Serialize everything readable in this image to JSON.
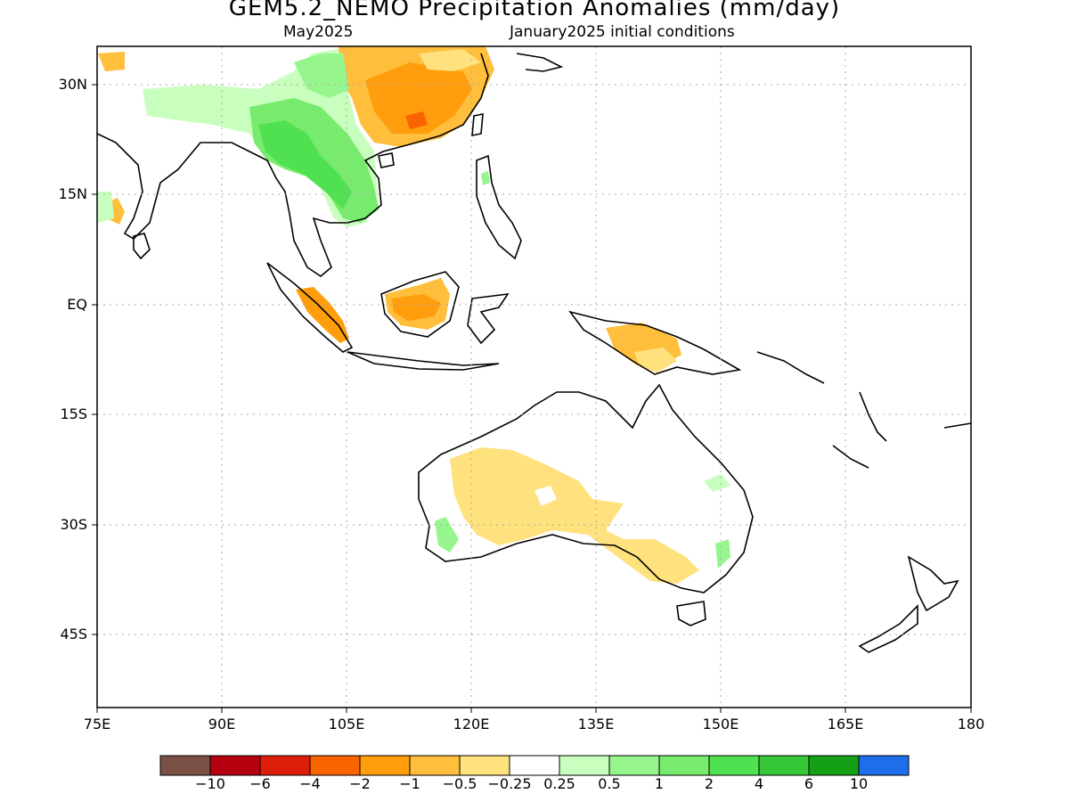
{
  "title": "GEM5.2_NEMO Precipitation Anomalies (mm/day)",
  "subtitle_left": "May2025",
  "subtitle_right": "January2025 initial conditions",
  "lat_labels": [
    "30N",
    "15N",
    "EQ",
    "15S",
    "30S",
    "45S"
  ],
  "lon_labels": [
    "75E",
    "90E",
    "105E",
    "120E",
    "135E",
    "150E",
    "165E",
    "180"
  ],
  "colorbar": {
    "colors": [
      "#7a5045",
      "#b4000f",
      "#dc1e0a",
      "#fa6400",
      "#ff9d0c",
      "#ffbe3c",
      "#ffe17d",
      "#ffffff",
      "#c8ffbe",
      "#96f58c",
      "#78eb6e",
      "#50e150",
      "#37c837",
      "#14a014",
      "#1e6eeb"
    ],
    "labels": [
      "−10",
      "−6",
      "−4",
      "−2",
      "−1",
      "−0.5",
      "−0.25",
      "0.25",
      "0.5",
      "1",
      "2",
      "4",
      "6",
      "10"
    ]
  },
  "colors": {
    "dry_light": "#ffe17d",
    "dry_medium": "#ffbe3c",
    "dry_strong": "#ff9d0c",
    "dry_deep": "#fa6400",
    "wet_light": "#c8ffbe",
    "wet_medium": "#96f58c",
    "wet_strong": "#50e150"
  }
}
